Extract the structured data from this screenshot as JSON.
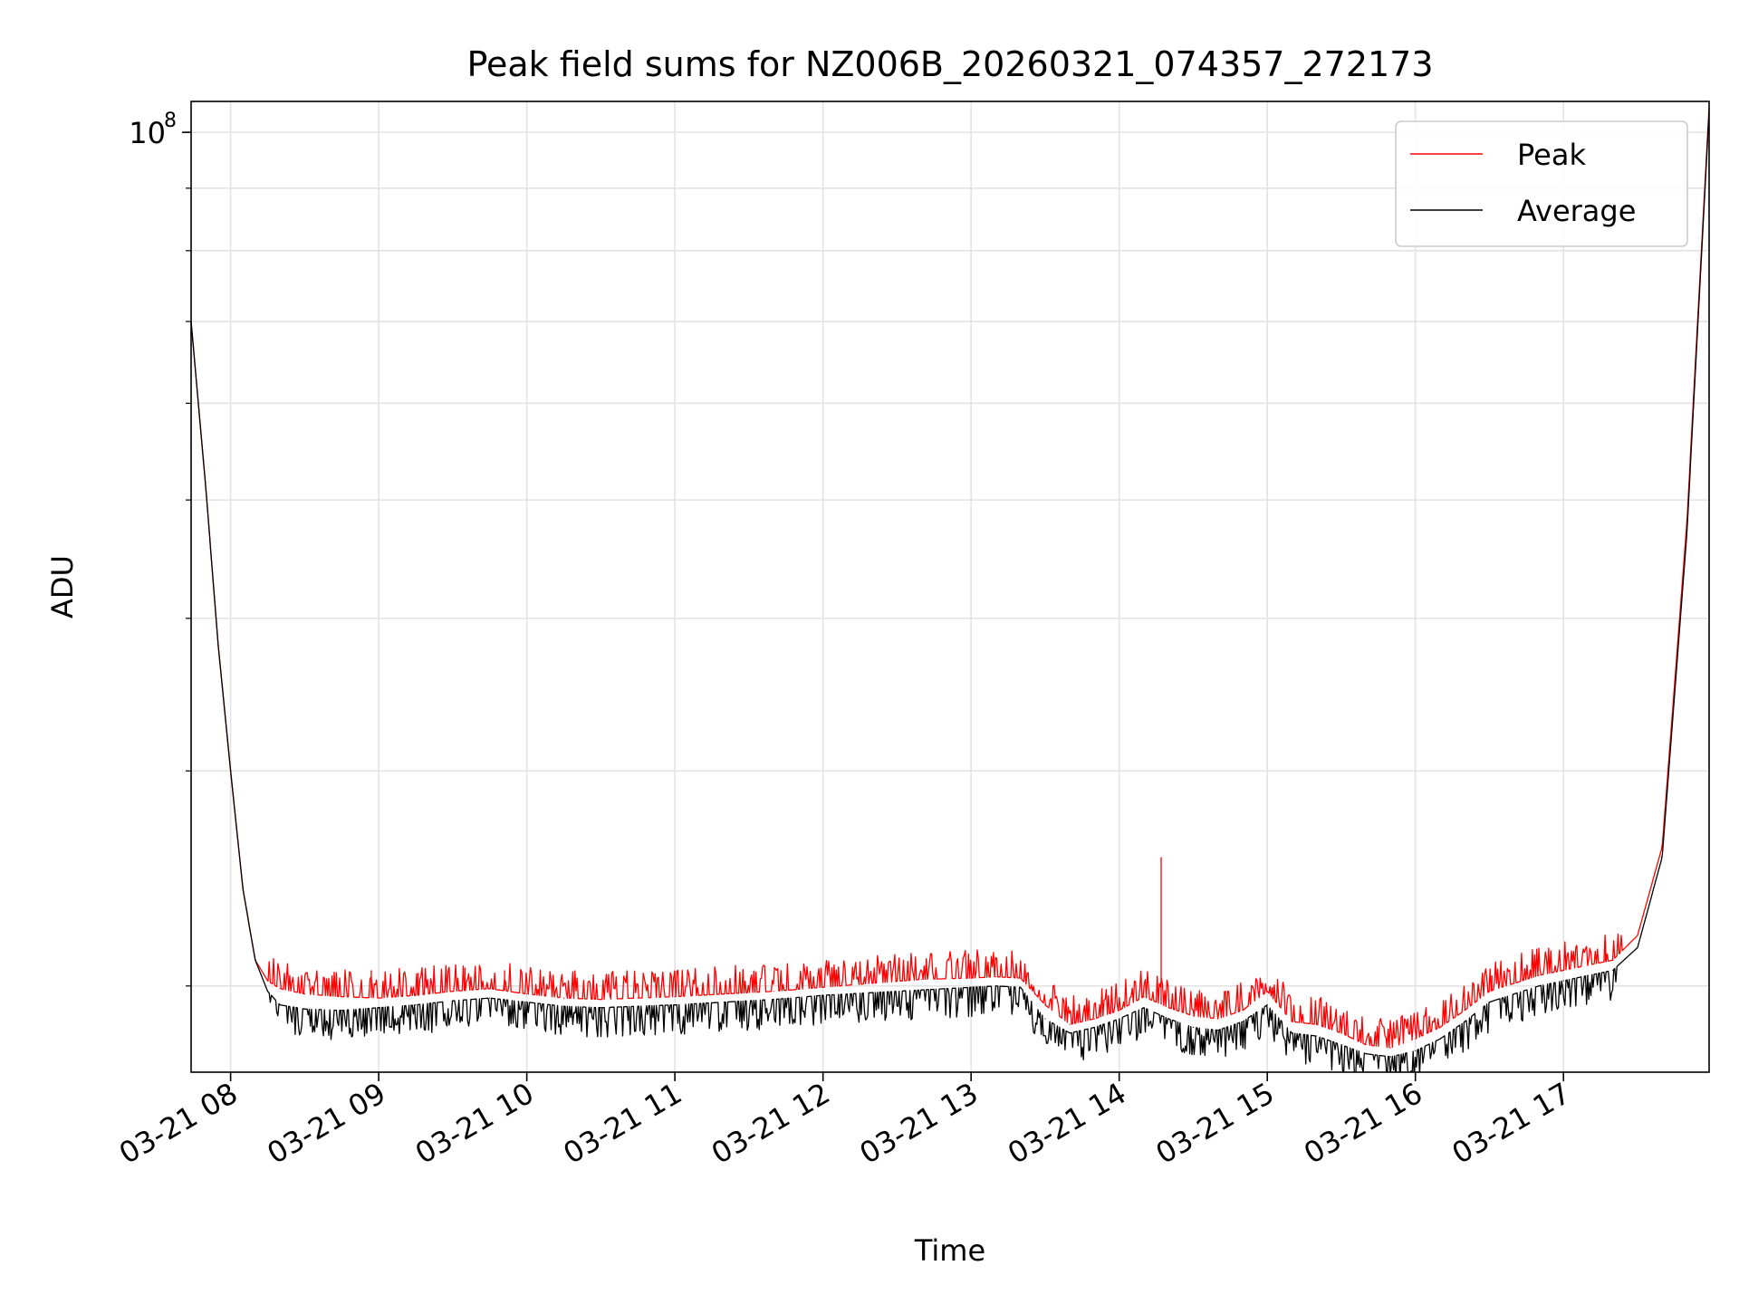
{
  "chart_data": {
    "type": "line",
    "title": "Peak field sums for NZ006B_20260321_074357_272173",
    "xlabel": "Time",
    "ylabel": "ADU",
    "y_scale": "log",
    "grid": true,
    "legend_position": "top-right",
    "xlim": [
      "2026-03-21 07:44",
      "2026-03-21 17:59"
    ],
    "ylim": [
      17000000,
      106000000
    ],
    "x_ticks": [
      {
        "time": "2026-03-21 08:00",
        "label": "03-21 08"
      },
      {
        "time": "2026-03-21 09:00",
        "label": "03-21 09"
      },
      {
        "time": "2026-03-21 10:00",
        "label": "03-21 10"
      },
      {
        "time": "2026-03-21 11:00",
        "label": "03-21 11"
      },
      {
        "time": "2026-03-21 12:00",
        "label": "03-21 12"
      },
      {
        "time": "2026-03-21 13:00",
        "label": "03-21 13"
      },
      {
        "time": "2026-03-21 14:00",
        "label": "03-21 14"
      },
      {
        "time": "2026-03-21 15:00",
        "label": "03-21 15"
      },
      {
        "time": "2026-03-21 16:00",
        "label": "03-21 16"
      },
      {
        "time": "2026-03-21 17:00",
        "label": "03-21 17"
      }
    ],
    "y_ticks": [
      {
        "value": 100000000,
        "label_base": "10",
        "label_exp": "8"
      }
    ],
    "y_minor_ticks": [
      20000000,
      30000000,
      40000000,
      50000000,
      60000000,
      70000000,
      80000000,
      90000000
    ],
    "series": [
      {
        "name": "Peak",
        "color": "#ff0000",
        "x": [
          "2026-03-21 07:44",
          "2026-03-21 07:50",
          "2026-03-21 07:55",
          "2026-03-21 08:00",
          "2026-03-21 08:05",
          "2026-03-21 08:10",
          "2026-03-21 08:15",
          "2026-03-21 08:20",
          "2026-03-21 08:30",
          "2026-03-21 08:45",
          "2026-03-21 09:00",
          "2026-03-21 09:15",
          "2026-03-21 09:30",
          "2026-03-21 09:45",
          "2026-03-21 10:00",
          "2026-03-21 10:15",
          "2026-03-21 10:30",
          "2026-03-21 10:45",
          "2026-03-21 11:00",
          "2026-03-21 11:20",
          "2026-03-21 11:40",
          "2026-03-21 12:00",
          "2026-03-21 12:20",
          "2026-03-21 12:40",
          "2026-03-21 13:00",
          "2026-03-21 13:10",
          "2026-03-21 13:20",
          "2026-03-21 13:30",
          "2026-03-21 13:40",
          "2026-03-21 13:50",
          "2026-03-21 14:00",
          "2026-03-21 14:10",
          "2026-03-21 14:20",
          "2026-03-21 14:30",
          "2026-03-21 14:40",
          "2026-03-21 14:50",
          "2026-03-21 15:00",
          "2026-03-21 15:10",
          "2026-03-21 15:20",
          "2026-03-21 15:30",
          "2026-03-21 15:40",
          "2026-03-21 15:50",
          "2026-03-21 16:00",
          "2026-03-21 16:10",
          "2026-03-21 16:20",
          "2026-03-21 16:30",
          "2026-03-21 16:40",
          "2026-03-21 16:50",
          "2026-03-21 17:00",
          "2026-03-21 17:10",
          "2026-03-21 17:20",
          "2026-03-21 17:30",
          "2026-03-21 17:40",
          "2026-03-21 17:50",
          "2026-03-21 17:59"
        ],
        "y": [
          70000000,
          51000000,
          38000000,
          30000000,
          24000000,
          21000000,
          20200000,
          19900000,
          19700000,
          19600000,
          19550000,
          19650000,
          19800000,
          19900000,
          19700000,
          19550000,
          19500000,
          19550000,
          19600000,
          19700000,
          19800000,
          19950000,
          20100000,
          20250000,
          20300000,
          20350000,
          20300000,
          19300000,
          18600000,
          18800000,
          19100000,
          19600000,
          19200000,
          18900000,
          18800000,
          19100000,
          19800000,
          18700000,
          18600000,
          18300000,
          17900000,
          17800000,
          18100000,
          18500000,
          19100000,
          19800000,
          20100000,
          20400000,
          20600000,
          20800000,
          21000000,
          22000000,
          26000000,
          48000000,
          105000000
        ],
        "spikes": [
          {
            "time": "2026-03-21 08:57",
            "value": 20600000
          },
          {
            "time": "2026-03-21 09:16",
            "value": 20500000
          },
          {
            "time": "2026-03-21 09:35",
            "value": 20700000
          },
          {
            "time": "2026-03-21 09:51",
            "value": 20600000
          },
          {
            "time": "2026-03-21 14:17",
            "value": 25500000
          },
          {
            "time": "2026-03-21 16:31",
            "value": 20400000
          },
          {
            "time": "2026-03-21 17:17",
            "value": 21800000
          }
        ]
      },
      {
        "name": "Average",
        "color": "#000000",
        "x": [
          "2026-03-21 07:44",
          "2026-03-21 07:50",
          "2026-03-21 07:55",
          "2026-03-21 08:00",
          "2026-03-21 08:05",
          "2026-03-21 08:10",
          "2026-03-21 08:15",
          "2026-03-21 08:20",
          "2026-03-21 08:30",
          "2026-03-21 08:45",
          "2026-03-21 09:00",
          "2026-03-21 09:15",
          "2026-03-21 09:30",
          "2026-03-21 09:45",
          "2026-03-21 10:00",
          "2026-03-21 10:15",
          "2026-03-21 10:30",
          "2026-03-21 10:45",
          "2026-03-21 11:00",
          "2026-03-21 11:20",
          "2026-03-21 11:40",
          "2026-03-21 12:00",
          "2026-03-21 12:20",
          "2026-03-21 12:40",
          "2026-03-21 13:00",
          "2026-03-21 13:10",
          "2026-03-21 13:20",
          "2026-03-21 13:30",
          "2026-03-21 13:40",
          "2026-03-21 13:50",
          "2026-03-21 14:00",
          "2026-03-21 14:10",
          "2026-03-21 14:20",
          "2026-03-21 14:30",
          "2026-03-21 14:40",
          "2026-03-21 14:50",
          "2026-03-21 15:00",
          "2026-03-21 15:10",
          "2026-03-21 15:20",
          "2026-03-21 15:30",
          "2026-03-21 15:40",
          "2026-03-21 15:50",
          "2026-03-21 16:00",
          "2026-03-21 16:10",
          "2026-03-21 16:20",
          "2026-03-21 16:30",
          "2026-03-21 16:40",
          "2026-03-21 16:50",
          "2026-03-21 17:00",
          "2026-03-21 17:10",
          "2026-03-21 17:20",
          "2026-03-21 17:30",
          "2026-03-21 17:40",
          "2026-03-21 17:50",
          "2026-03-21 17:59"
        ],
        "y": [
          70000000,
          51000000,
          38000000,
          30000000,
          24000000,
          21000000,
          19800000,
          19300000,
          19150000,
          19100000,
          19200000,
          19300000,
          19450000,
          19550000,
          19400000,
          19250000,
          19200000,
          19250000,
          19300000,
          19400000,
          19500000,
          19650000,
          19750000,
          19850000,
          19950000,
          20000000,
          19950000,
          18800000,
          18300000,
          18500000,
          18800000,
          19200000,
          18800000,
          18500000,
          18400000,
          18700000,
          19300000,
          18300000,
          18200000,
          17900000,
          17600000,
          17500000,
          17700000,
          18100000,
          18700000,
          19400000,
          19700000,
          20000000,
          20200000,
          20400000,
          20600000,
          21500000,
          25500000,
          47000000,
          104000000
        ]
      }
    ]
  }
}
